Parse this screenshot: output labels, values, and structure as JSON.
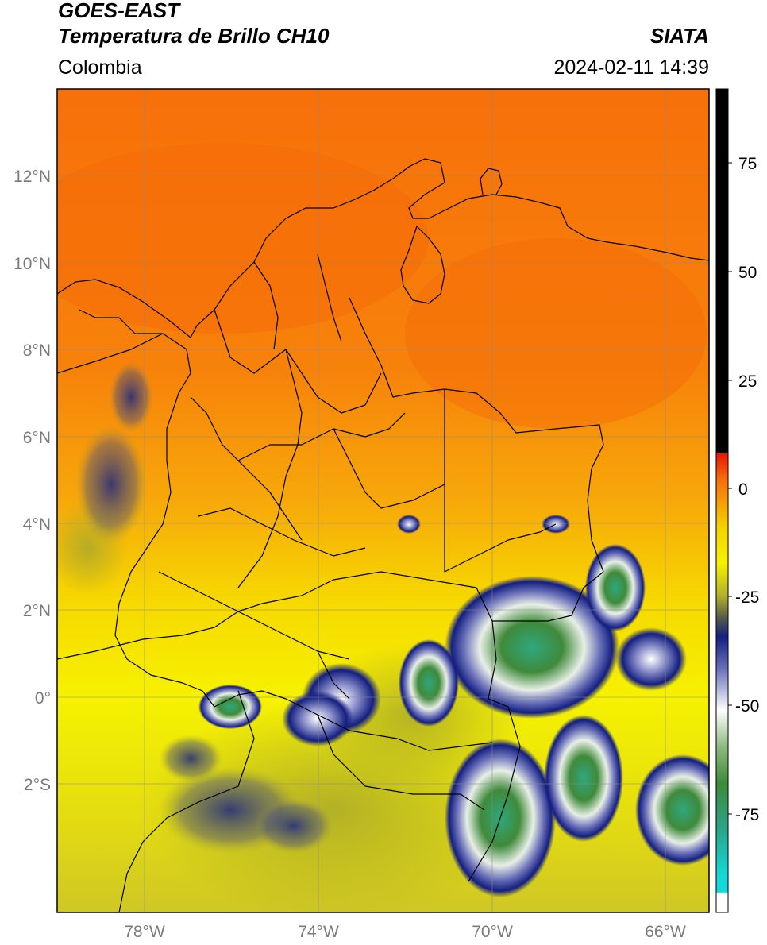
{
  "header": {
    "satellite": "GOES-EAST",
    "product": "Temperatura de Brillo CH10",
    "region": "Colombia",
    "institution": "SIATA",
    "datetime": "2024-02-11 14:39"
  },
  "map": {
    "lat_ticks": [
      "12°N",
      "10°N",
      "8°N",
      "6°N",
      "4°N",
      "2°N",
      "0°",
      "2°S"
    ],
    "lon_ticks": [
      "78°W",
      "74°W",
      "70°W",
      "66°W"
    ],
    "gridlines": true
  },
  "colorbar": {
    "ticks": [
      "75",
      "50",
      "25",
      "0",
      "-25",
      "-50",
      "-75"
    ],
    "colors": {
      "black": "#000000",
      "red": "#e8110a",
      "orange": "#f7700a",
      "yellow": "#f6f200",
      "olive": "#b3b22a",
      "navy": "#141f80",
      "white": "#ffffff",
      "green": "#3f8a3a",
      "cyan": "#16d8d8"
    }
  }
}
